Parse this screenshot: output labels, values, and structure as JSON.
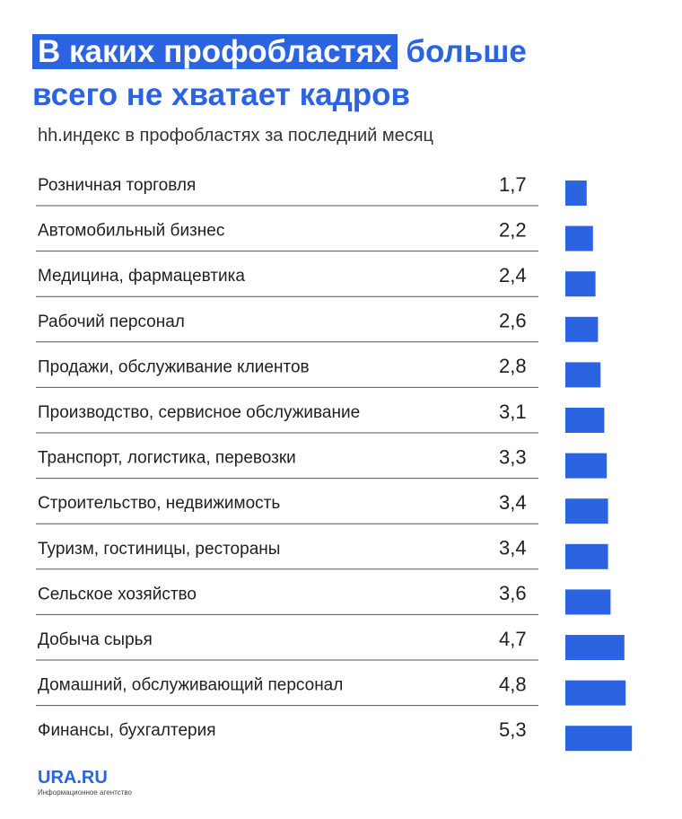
{
  "chart_data": {
    "type": "bar",
    "orientation": "horizontal",
    "title": [
      "В каких профобластях",
      "больше",
      "всего не хватает кадров"
    ],
    "subtitle": "hh.индекс в профобластях за последний месяц",
    "categories": [
      "Розничная торговля",
      "Автомобильный бизнес",
      "Медицина, фармацевтика",
      "Рабочий персонал",
      "Продажи, обслуживание клиентов",
      "Производство, сервисное обслуживание",
      "Транспорт, логистика, перевозки",
      "Строительство, недвижимость",
      "Туризм, гостиницы, рестораны",
      "Сельское хозяйство",
      "Добыча сырья",
      "Домашний, обслуживающий персонал",
      "Финансы, бухгалтерия"
    ],
    "values": [
      1.7,
      2.2,
      2.4,
      2.6,
      2.8,
      3.1,
      3.3,
      3.4,
      3.4,
      3.6,
      4.7,
      4.8,
      5.3
    ],
    "value_labels": [
      "1,7",
      "2,2",
      "2,4",
      "2,6",
      "2,8",
      "3,1",
      "3,3",
      "3,4",
      "3,4",
      "3,6",
      "4,7",
      "4,8",
      "5,3"
    ],
    "color": "#2b63e0",
    "source": [
      "URA.RU",
      "Информационное агентство"
    ]
  }
}
